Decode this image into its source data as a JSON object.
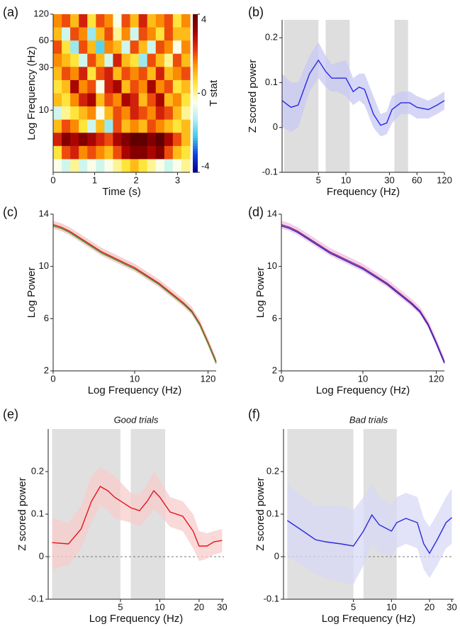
{
  "chart_data": [
    {
      "type": "heatmap",
      "panel": "(a)",
      "xlabel": "Time (s)",
      "ylabel": "Log Frequency (Hz)",
      "colorbar_label": "T stat",
      "xlim": [
        0,
        3.3
      ],
      "xticks": [
        0,
        1,
        2,
        3
      ],
      "yscale": "log",
      "ylim": [
        2,
        120
      ],
      "yticks": [
        10,
        30,
        60,
        120
      ],
      "clim": [
        -4,
        4
      ],
      "cticks": [
        4,
        0,
        -4
      ],
      "colormap": [
        "#00008b",
        "#1040e0",
        "#40c8e8",
        "#b0f0f0",
        "#ffffe8",
        "#ffe840",
        "#ffa000",
        "#e83010",
        "#a00000",
        "#600000"
      ],
      "z": [
        [
          1.5,
          2,
          1,
          2.5,
          0.5,
          2,
          1.5,
          -0.5,
          2,
          1,
          2.5,
          1,
          1.5,
          2,
          0.5,
          1.5
        ],
        [
          1,
          -1,
          2,
          1.5,
          -1.5,
          1,
          2,
          0,
          1.5,
          -1,
          2,
          1.5,
          0.5,
          2,
          1,
          1
        ],
        [
          2,
          0.5,
          -1.5,
          2,
          1,
          -2,
          1.5,
          1,
          -1,
          2,
          1,
          -1,
          2,
          1.5,
          -0.5,
          1.5
        ],
        [
          1.5,
          1,
          0.5,
          -1,
          2,
          1,
          -1,
          2.5,
          1,
          0.5,
          -1.5,
          2,
          1,
          0,
          2,
          1
        ],
        [
          1,
          2,
          1.5,
          2.5,
          0.5,
          2,
          2.5,
          1,
          2,
          1.5,
          2,
          1,
          2.5,
          1,
          1.5,
          2
        ],
        [
          0.5,
          1,
          3,
          1.5,
          2,
          -0.5,
          2.5,
          3,
          1,
          2,
          1.5,
          3,
          1.5,
          2,
          0.5,
          1
        ],
        [
          1,
          0.5,
          1.5,
          2.5,
          3,
          1,
          2,
          1.5,
          3,
          2.5,
          1,
          2,
          3,
          1,
          1.5,
          0.5
        ],
        [
          -1,
          0,
          0.5,
          1,
          1.5,
          -0.5,
          1,
          2,
          1.5,
          2.5,
          2,
          1.5,
          2.5,
          2,
          1,
          0
        ],
        [
          1,
          2,
          1.5,
          0.5,
          -1,
          1,
          -1.5,
          2,
          1,
          1.5,
          1,
          2,
          1.5,
          1,
          0.5,
          1
        ],
        [
          2.5,
          3.5,
          3,
          3.5,
          3,
          2.5,
          2,
          3,
          3.5,
          4,
          4,
          3.5,
          4,
          3,
          2,
          1
        ],
        [
          0.5,
          2,
          2.5,
          1.5,
          2,
          1.5,
          1,
          2,
          3,
          3.5,
          3.5,
          3,
          3.5,
          2,
          1,
          0.5
        ],
        [
          -0.5,
          -1,
          0,
          -1,
          -0.5,
          -1,
          -0.5,
          0,
          0.5,
          1,
          0.5,
          0,
          -0.5,
          -1,
          -0.5,
          0
        ]
      ]
    },
    {
      "type": "line",
      "panel": "(b)",
      "xlabel": "Frequency (Hz)",
      "ylabel": "Z scored power",
      "xscale": "log",
      "xlim": [
        2,
        120
      ],
      "xticks": [
        5,
        10,
        30,
        60,
        120
      ],
      "ylim": [
        -0.1,
        0.24
      ],
      "yticks": [
        -0.1,
        0,
        0.1,
        0.2
      ],
      "shaded_regions": [
        [
          2.1,
          5
        ],
        [
          6,
          11
        ],
        [
          34,
          48
        ]
      ],
      "region_color": "#dedede",
      "x": [
        2,
        2.5,
        3,
        4,
        5,
        6,
        7,
        8,
        10,
        12,
        14,
        16,
        20,
        24,
        28,
        32,
        40,
        50,
        60,
        80,
        100,
        120
      ],
      "series": [
        {
          "color": "#2a2ae0",
          "band_color": "#c8c8f4",
          "values": [
            0.06,
            0.045,
            0.05,
            0.12,
            0.15,
            0.125,
            0.11,
            0.11,
            0.11,
            0.08,
            0.09,
            0.085,
            0.03,
            0.005,
            0.01,
            0.04,
            0.055,
            0.055,
            0.045,
            0.04,
            0.05,
            0.06
          ],
          "lower": [
            0.0,
            -0.01,
            0.0,
            0.08,
            0.11,
            0.09,
            0.08,
            0.08,
            0.07,
            0.05,
            0.06,
            0.05,
            0.0,
            -0.02,
            -0.015,
            0.01,
            0.03,
            0.03,
            0.02,
            0.02,
            0.03,
            0.04
          ],
          "upper": [
            0.12,
            0.1,
            0.1,
            0.16,
            0.19,
            0.16,
            0.14,
            0.145,
            0.15,
            0.11,
            0.12,
            0.12,
            0.07,
            0.03,
            0.035,
            0.07,
            0.08,
            0.08,
            0.07,
            0.06,
            0.07,
            0.08
          ]
        }
      ]
    },
    {
      "type": "line",
      "panel": "(c)",
      "xlabel": "Log Frequency (Hz)",
      "ylabel": "Log Power",
      "categories": [
        "0",
        null,
        null,
        null,
        null,
        null,
        null,
        null,
        null,
        null,
        "10",
        null,
        null,
        null,
        null,
        null,
        null,
        null,
        null,
        "120",
        null
      ],
      "ylim": [
        2,
        14
      ],
      "yticks": [
        2,
        6,
        10,
        14
      ],
      "series": [
        {
          "color": "#e8141a",
          "band_color": "#f4c0c0",
          "values": [
            13.2,
            13.0,
            12.7,
            12.3,
            11.9,
            11.5,
            11.1,
            10.8,
            10.5,
            10.2,
            9.9,
            9.5,
            9.1,
            8.7,
            8.2,
            7.7,
            7.2,
            6.6,
            5.6,
            4.2,
            2.7
          ],
          "lower": [
            12.9,
            12.7,
            12.4,
            12.0,
            11.6,
            11.2,
            10.8,
            10.5,
            10.2,
            9.9,
            9.6,
            9.2,
            8.8,
            8.4,
            7.9,
            7.4,
            6.9,
            6.3,
            5.3,
            3.9,
            2.4
          ],
          "upper": [
            13.5,
            13.3,
            13.0,
            12.6,
            12.2,
            11.8,
            11.4,
            11.1,
            10.8,
            10.5,
            10.2,
            9.8,
            9.4,
            9.0,
            8.5,
            8.0,
            7.5,
            6.9,
            5.9,
            4.5,
            3.0
          ]
        },
        {
          "color": "#3a9a2e",
          "values": [
            13.1,
            12.9,
            12.6,
            12.2,
            11.8,
            11.4,
            11.0,
            10.7,
            10.4,
            10.1,
            9.8,
            9.4,
            9.0,
            8.6,
            8.1,
            7.6,
            7.1,
            6.5,
            5.5,
            4.1,
            2.6
          ]
        }
      ]
    },
    {
      "type": "line",
      "panel": "(d)",
      "xlabel": "Log Frequency (Hz)",
      "ylabel": "Log Power",
      "categories": [
        "0",
        null,
        null,
        null,
        null,
        null,
        null,
        null,
        null,
        null,
        "10",
        null,
        null,
        null,
        null,
        null,
        null,
        null,
        null,
        "120",
        null
      ],
      "ylim": [
        2,
        14
      ],
      "yticks": [
        2,
        6,
        10,
        14
      ],
      "series": [
        {
          "color": "#a02080",
          "band_color": "#ecc0e0",
          "values": [
            13.2,
            13.0,
            12.7,
            12.3,
            11.9,
            11.5,
            11.1,
            10.8,
            10.5,
            10.2,
            9.9,
            9.5,
            9.1,
            8.7,
            8.2,
            7.7,
            7.2,
            6.6,
            5.6,
            4.2,
            2.7
          ],
          "lower": [
            12.9,
            12.7,
            12.4,
            12.0,
            11.6,
            11.2,
            10.8,
            10.5,
            10.2,
            9.9,
            9.6,
            9.2,
            8.8,
            8.4,
            7.9,
            7.4,
            6.9,
            6.3,
            5.3,
            3.9,
            2.4
          ],
          "upper": [
            13.5,
            13.3,
            13.0,
            12.6,
            12.2,
            11.8,
            11.4,
            11.1,
            10.8,
            10.5,
            10.2,
            9.8,
            9.4,
            9.0,
            8.5,
            8.0,
            7.5,
            6.9,
            5.9,
            4.5,
            3.0
          ]
        },
        {
          "color": "#2828c0",
          "values": [
            13.1,
            12.9,
            12.6,
            12.2,
            11.8,
            11.4,
            11.0,
            10.7,
            10.4,
            10.1,
            9.8,
            9.4,
            9.0,
            8.6,
            8.1,
            7.6,
            7.1,
            6.5,
            5.5,
            4.1,
            2.6
          ]
        }
      ]
    },
    {
      "type": "line",
      "panel": "(e)",
      "title": "Good trials",
      "xlabel": "Log Frequency (Hz)",
      "ylabel": "Z scored power",
      "xscale": "log",
      "xlim": [
        1.4,
        31
      ],
      "xticks": [
        5,
        10,
        20,
        30
      ],
      "ylim": [
        -0.1,
        0.3
      ],
      "yticks": [
        -0.1,
        0,
        0.1,
        0.2
      ],
      "zero_line": true,
      "shaded_regions": [
        [
          1.5,
          5
        ],
        [
          6,
          11
        ]
      ],
      "region_color": "#e0e0e0",
      "x": [
        1.5,
        2,
        2.5,
        3,
        3.5,
        4,
        4.5,
        6,
        7,
        8,
        9,
        10,
        12,
        15,
        18,
        20,
        23,
        26,
        30
      ],
      "series": [
        {
          "color": "#e8141a",
          "band_color": "#f8cccc",
          "values": [
            0.033,
            0.03,
            0.065,
            0.13,
            0.165,
            0.155,
            0.14,
            0.115,
            0.108,
            0.13,
            0.155,
            0.14,
            0.105,
            0.095,
            0.06,
            0.025,
            0.025,
            0.035,
            0.038
          ],
          "lower": [
            -0.03,
            -0.02,
            0.02,
            0.08,
            0.12,
            0.11,
            0.09,
            0.08,
            0.07,
            0.09,
            0.11,
            0.1,
            0.07,
            0.06,
            0.02,
            -0.01,
            -0.005,
            0.005,
            0.01
          ],
          "upper": [
            0.09,
            0.08,
            0.12,
            0.19,
            0.21,
            0.2,
            0.19,
            0.15,
            0.145,
            0.17,
            0.2,
            0.18,
            0.14,
            0.13,
            0.1,
            0.06,
            0.055,
            0.06,
            0.065
          ]
        }
      ]
    },
    {
      "type": "line",
      "panel": "(f)",
      "title": "Bad trials",
      "xlabel": "Log Frequency (Hz)",
      "ylabel": "Z scored power",
      "xscale": "log",
      "xlim": [
        1.4,
        31
      ],
      "xticks": [
        5,
        10,
        20,
        30
      ],
      "ylim": [
        -0.1,
        0.3
      ],
      "yticks": [
        -0.1,
        0,
        0.1,
        0.2
      ],
      "zero_line": true,
      "shaded_regions": [
        [
          1.5,
          5
        ],
        [
          6,
          11
        ]
      ],
      "region_color": "#e0e0e0",
      "x": [
        1.5,
        2,
        2.5,
        3,
        4,
        5,
        6,
        7,
        8,
        10,
        11,
        13,
        16,
        18,
        20,
        23,
        27,
        30
      ],
      "series": [
        {
          "color": "#2a2ae0",
          "band_color": "#d8d8f6",
          "values": [
            0.085,
            0.06,
            0.04,
            0.035,
            0.03,
            0.025,
            0.06,
            0.098,
            0.075,
            0.06,
            0.08,
            0.09,
            0.08,
            0.03,
            0.008,
            0.04,
            0.08,
            0.092
          ],
          "lower": [
            0.0,
            -0.02,
            -0.04,
            -0.05,
            -0.06,
            -0.065,
            -0.02,
            0.03,
            0.01,
            0.0,
            0.02,
            0.03,
            0.02,
            -0.03,
            -0.05,
            -0.02,
            0.02,
            0.03
          ],
          "upper": [
            0.17,
            0.14,
            0.12,
            0.12,
            0.12,
            0.11,
            0.14,
            0.17,
            0.14,
            0.12,
            0.14,
            0.15,
            0.14,
            0.09,
            0.07,
            0.1,
            0.14,
            0.16
          ]
        }
      ]
    }
  ]
}
